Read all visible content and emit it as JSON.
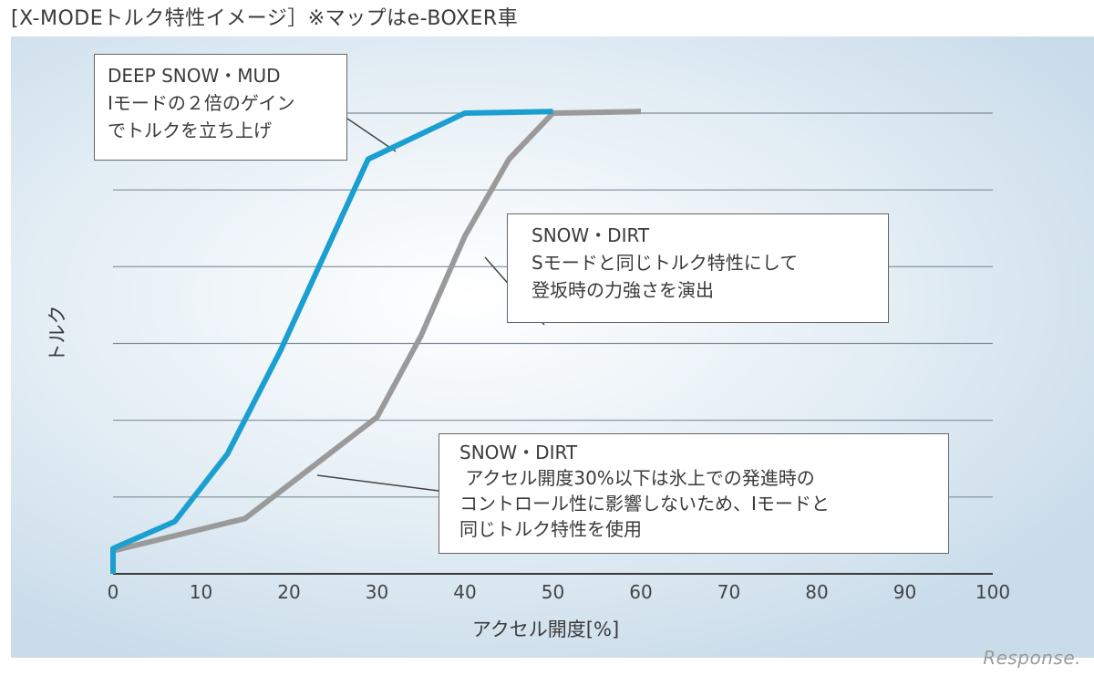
{
  "title": "[X-MODEトルク特性イメージ］※マップはe-BOXER車",
  "watermark": "Response.",
  "chart_data": {
    "type": "line",
    "xlabel": "アクセル開度[%]",
    "ylabel": "トルク",
    "xlim": [
      0,
      100
    ],
    "ylim": [
      0,
      6
    ],
    "x_ticks": [
      0,
      10,
      20,
      30,
      40,
      50,
      60,
      70,
      80,
      90,
      100
    ],
    "grid": true,
    "series": [
      {
        "color": "#1a9fd0",
        "points": [
          [
            0,
            0
          ],
          [
            0,
            0.33
          ],
          [
            7,
            0.68
          ],
          [
            13,
            1.56
          ],
          [
            19,
            2.9
          ],
          [
            29,
            5.4
          ],
          [
            40,
            6.0
          ],
          [
            50,
            6.02
          ]
        ]
      },
      {
        "color": "#9a9a9a",
        "points": [
          [
            0,
            0
          ],
          [
            0,
            0.3
          ],
          [
            15,
            0.72
          ],
          [
            25,
            1.6
          ],
          [
            30,
            2.04
          ],
          [
            35,
            3.1
          ],
          [
            40,
            4.4
          ],
          [
            45,
            5.4
          ],
          [
            50,
            6.0
          ],
          [
            60,
            6.02
          ]
        ]
      }
    ],
    "annotations": [
      {
        "lines": [
          "DEEP SNOW・MUD",
          "Iモードの２倍のゲイン",
          "でトルクを立ち上げ"
        ]
      },
      {
        "lines": [
          "SNOW・DIRT",
          "Sモードと同じトルク特性にして",
          "登坂時の力強さを演出"
        ]
      },
      {
        "lines": [
          "SNOW・DIRT",
          " アクセル開度30%以下は氷上での発進時の",
          "コントロール性に影響しないため、Iモードと",
          "同じトルク特性を使用"
        ]
      }
    ]
  }
}
